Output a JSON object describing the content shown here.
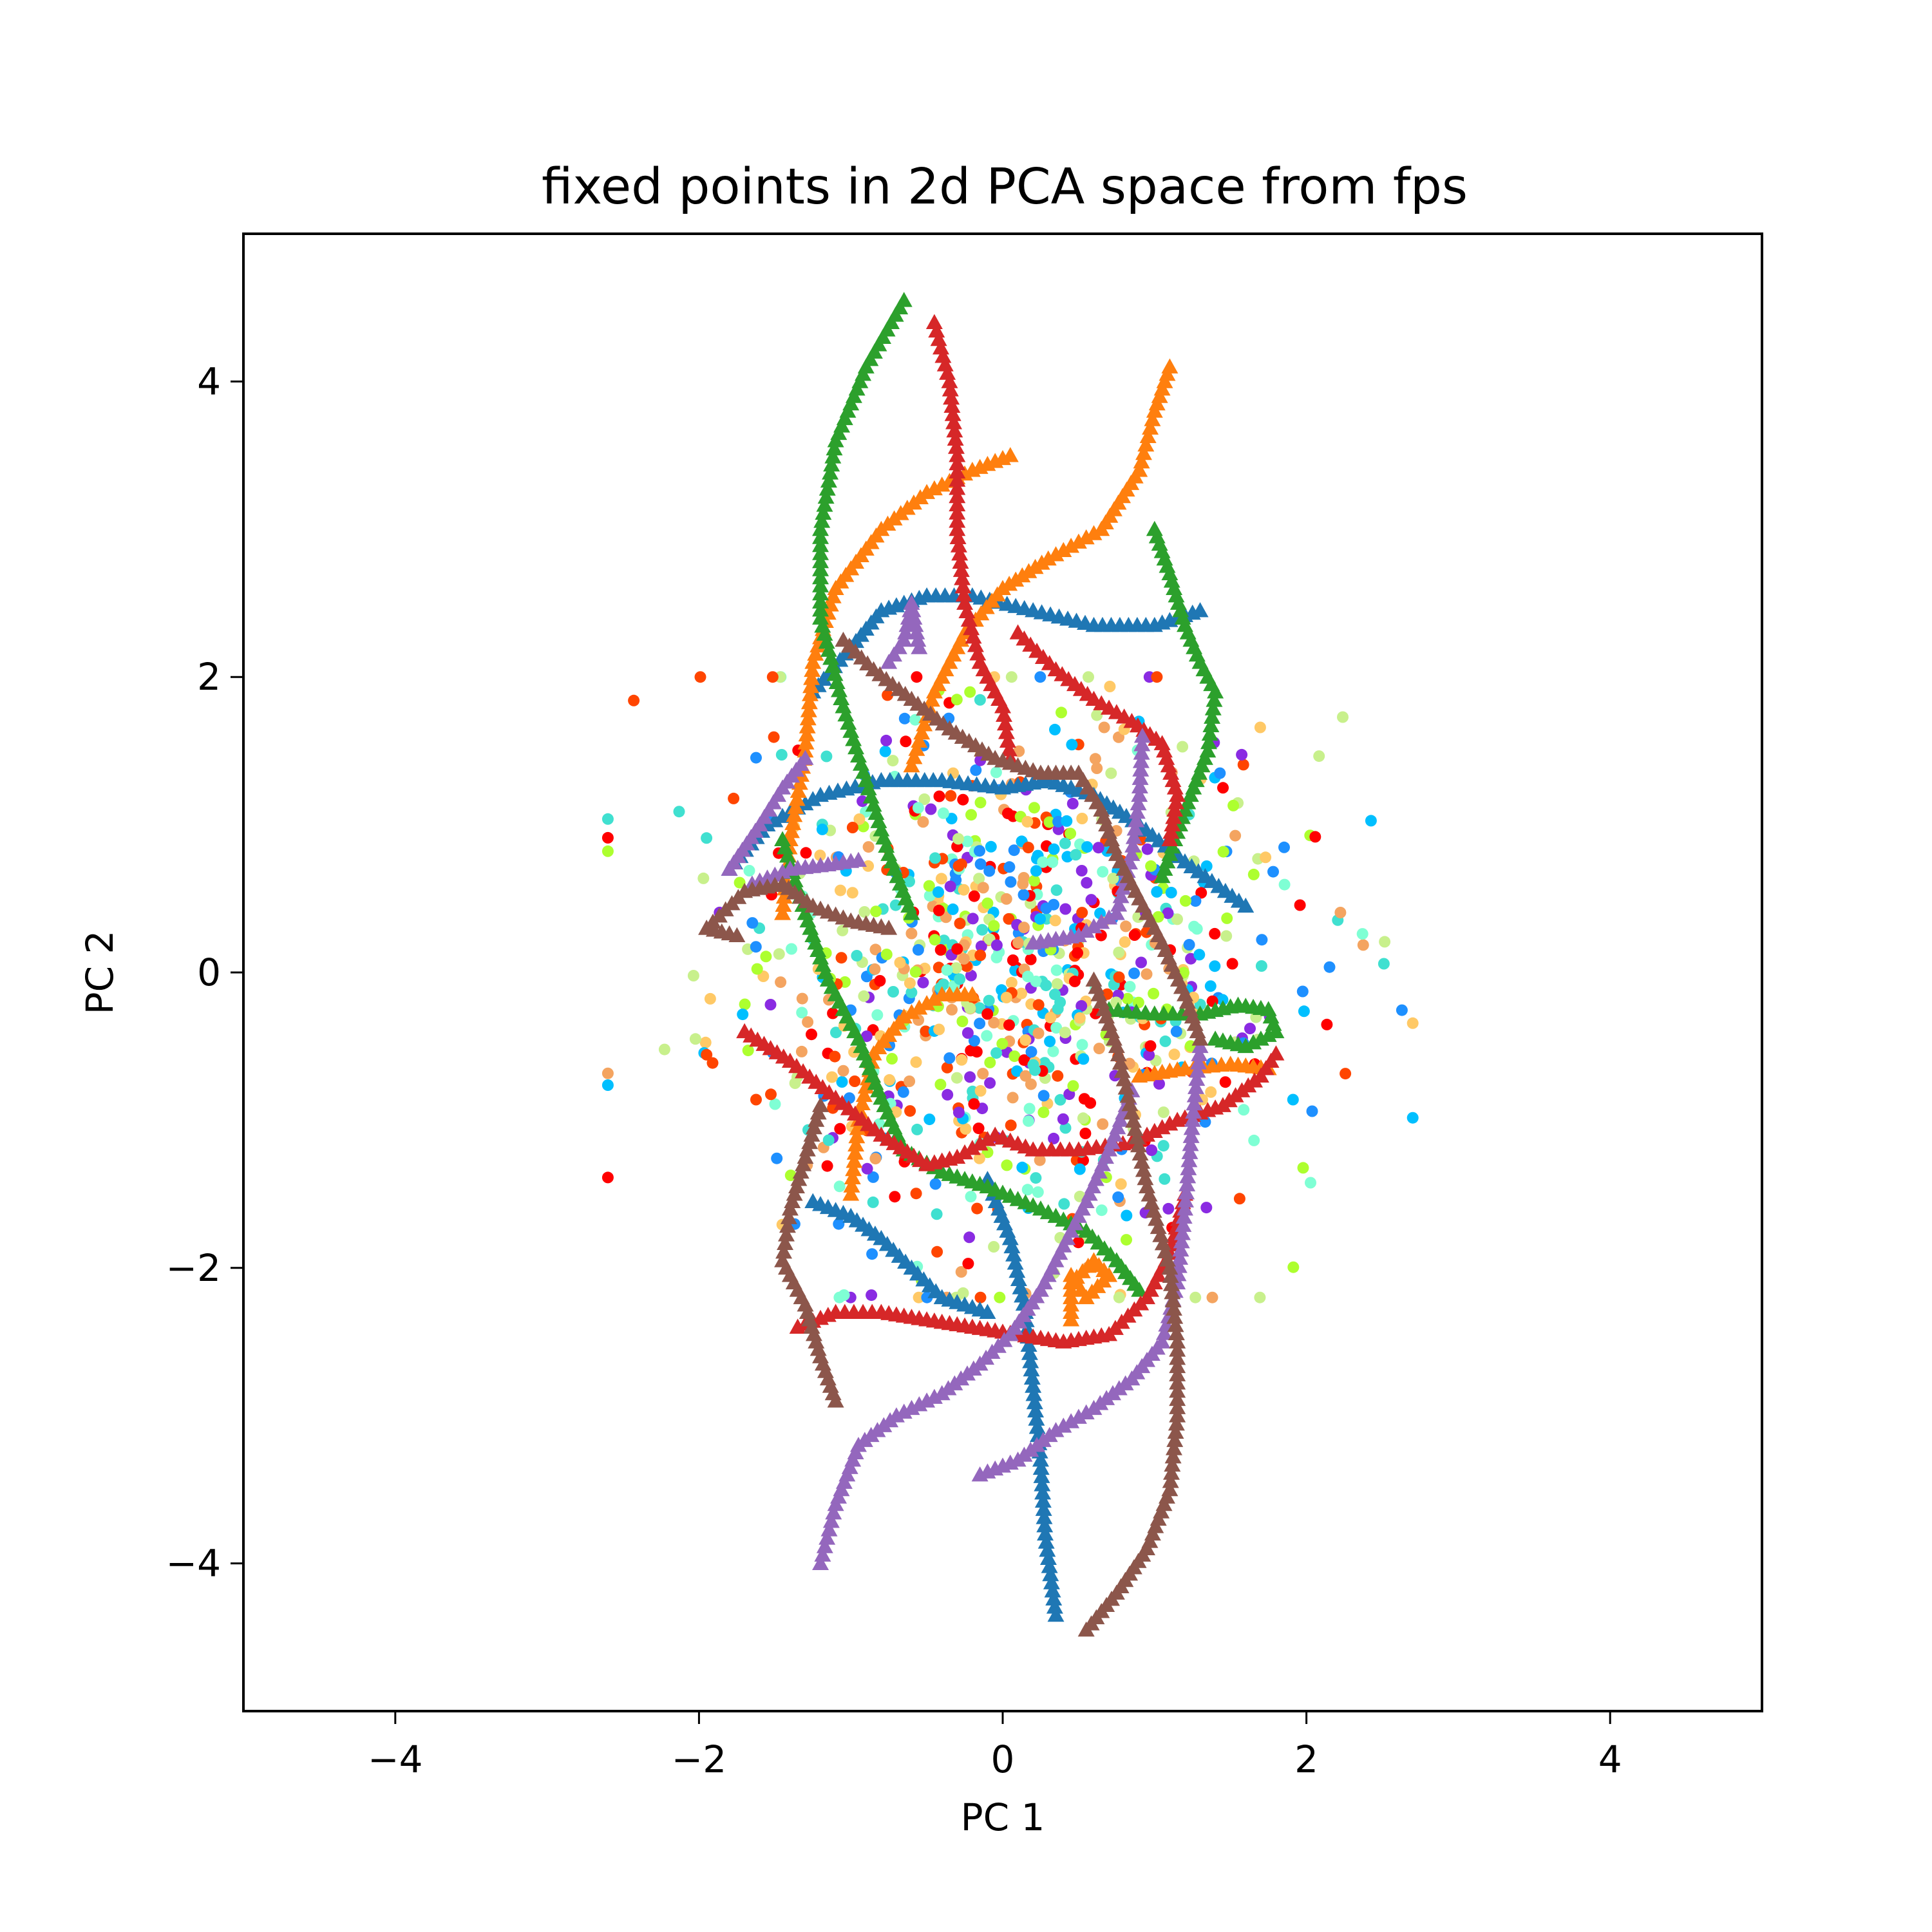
{
  "chart_data": {
    "type": "scatter",
    "title": "fixed points in 2d PCA space from fps",
    "xlabel": "PC 1",
    "ylabel": "PC 2",
    "xlim": [
      -5,
      5
    ],
    "ylim": [
      -5,
      5
    ],
    "xticks": [
      -4,
      -2,
      0,
      2,
      4
    ],
    "yticks": [
      -4,
      -2,
      0,
      2,
      4
    ],
    "xtick_labels": [
      "−4",
      "−2",
      "0",
      "2",
      "4"
    ],
    "ytick_labels": [
      "−4",
      "−2",
      "0",
      "2",
      "4"
    ],
    "grid": false,
    "legend": "none",
    "trajectories": [
      {
        "marker": "triangle",
        "color": "#1f77b4",
        "points": [
          [
            -1.25,
            1.9
          ],
          [
            -1.0,
            2.2
          ],
          [
            -0.8,
            2.45
          ],
          [
            -0.5,
            2.55
          ],
          [
            -0.2,
            2.55
          ],
          [
            0.2,
            2.45
          ],
          [
            0.6,
            2.35
          ],
          [
            1.0,
            2.35
          ],
          [
            1.3,
            2.45
          ]
        ]
      },
      {
        "marker": "triangle",
        "color": "#1f77b4",
        "points": [
          [
            -1.8,
            0.7
          ],
          [
            -1.55,
            1.0
          ],
          [
            -1.2,
            1.2
          ],
          [
            -0.8,
            1.3
          ],
          [
            -0.4,
            1.3
          ],
          [
            0.0,
            1.25
          ],
          [
            0.3,
            1.3
          ],
          [
            0.6,
            1.2
          ],
          [
            0.9,
            1.0
          ],
          [
            1.2,
            0.75
          ],
          [
            1.6,
            0.45
          ]
        ]
      },
      {
        "marker": "triangle",
        "color": "#1f77b4",
        "points": [
          [
            -1.25,
            -1.55
          ],
          [
            -1.0,
            -1.65
          ],
          [
            -0.8,
            -1.8
          ],
          [
            -0.6,
            -2.0
          ],
          [
            -0.4,
            -2.2
          ],
          [
            -0.1,
            -2.3
          ]
        ]
      },
      {
        "marker": "triangle",
        "color": "#1f77b4",
        "points": [
          [
            -0.1,
            -1.4
          ],
          [
            0.05,
            -1.8
          ],
          [
            0.15,
            -2.3
          ],
          [
            0.2,
            -2.8
          ],
          [
            0.25,
            -3.3
          ],
          [
            0.28,
            -3.8
          ],
          [
            0.35,
            -4.35
          ]
        ]
      },
      {
        "marker": "triangle",
        "color": "#ff7f0e",
        "points": [
          [
            -1.45,
            0.4
          ],
          [
            -1.4,
            0.9
          ],
          [
            -1.3,
            1.5
          ],
          [
            -1.25,
            2.1
          ],
          [
            -1.1,
            2.6
          ],
          [
            -0.8,
            3.0
          ],
          [
            -0.5,
            3.25
          ],
          [
            -0.2,
            3.4
          ],
          [
            0.05,
            3.5
          ]
        ]
      },
      {
        "marker": "triangle",
        "color": "#ff7f0e",
        "points": [
          [
            -0.6,
            1.4
          ],
          [
            -0.45,
            1.9
          ],
          [
            -0.25,
            2.3
          ],
          [
            0.0,
            2.6
          ],
          [
            0.3,
            2.8
          ],
          [
            0.65,
            3.0
          ],
          [
            0.9,
            3.4
          ],
          [
            1.0,
            3.8
          ],
          [
            1.1,
            4.1
          ]
        ]
      },
      {
        "marker": "triangle",
        "color": "#ff7f0e",
        "points": [
          [
            -1.0,
            -1.5
          ],
          [
            -0.95,
            -1.0
          ],
          [
            -0.85,
            -0.55
          ],
          [
            -0.65,
            -0.3
          ],
          [
            -0.4,
            -0.15
          ],
          [
            -0.2,
            -0.15
          ]
        ]
      },
      {
        "marker": "triangle",
        "color": "#ff7f0e",
        "points": [
          [
            0.9,
            -0.7
          ],
          [
            1.2,
            -0.65
          ],
          [
            1.5,
            -0.62
          ],
          [
            1.75,
            -0.65
          ]
        ]
      },
      {
        "marker": "triangle",
        "color": "#ff7f0e",
        "points": [
          [
            0.45,
            -2.35
          ],
          [
            0.45,
            -2.1
          ],
          [
            0.6,
            -1.95
          ],
          [
            0.7,
            -2.05
          ],
          [
            0.55,
            -2.2
          ],
          [
            0.45,
            -2.05
          ]
        ]
      },
      {
        "marker": "triangle",
        "color": "#2ca02c",
        "points": [
          [
            -0.65,
            4.55
          ],
          [
            -0.9,
            4.1
          ],
          [
            -1.1,
            3.6
          ],
          [
            -1.2,
            3.0
          ],
          [
            -1.2,
            2.4
          ],
          [
            -1.05,
            1.8
          ],
          [
            -0.9,
            1.3
          ],
          [
            -0.75,
            0.8
          ],
          [
            -0.6,
            0.4
          ]
        ]
      },
      {
        "marker": "triangle",
        "color": "#2ca02c",
        "points": [
          [
            -1.45,
            0.9
          ],
          [
            -1.3,
            0.4
          ],
          [
            -1.15,
            -0.05
          ],
          [
            -0.95,
            -0.45
          ],
          [
            -0.8,
            -0.85
          ],
          [
            -0.65,
            -1.2
          ],
          [
            -0.4,
            -1.35
          ],
          [
            -0.1,
            -1.45
          ],
          [
            0.25,
            -1.6
          ],
          [
            0.55,
            -1.75
          ],
          [
            0.75,
            -1.95
          ],
          [
            0.9,
            -2.15
          ]
        ]
      },
      {
        "marker": "triangle",
        "color": "#2ca02c",
        "points": [
          [
            1.0,
            3.0
          ],
          [
            1.1,
            2.7
          ],
          [
            1.2,
            2.35
          ],
          [
            1.3,
            2.1
          ],
          [
            1.4,
            1.9
          ],
          [
            1.35,
            1.5
          ],
          [
            1.2,
            1.1
          ],
          [
            1.05,
            0.65
          ]
        ]
      },
      {
        "marker": "triangle",
        "color": "#2ca02c",
        "points": [
          [
            0.7,
            -0.25
          ],
          [
            1.0,
            -0.28
          ],
          [
            1.3,
            -0.28
          ],
          [
            1.55,
            -0.22
          ],
          [
            1.75,
            -0.25
          ],
          [
            1.8,
            -0.4
          ],
          [
            1.6,
            -0.5
          ],
          [
            1.4,
            -0.45
          ]
        ]
      },
      {
        "marker": "triangle",
        "color": "#d62728",
        "points": [
          [
            -0.45,
            4.4
          ],
          [
            -0.35,
            4.0
          ],
          [
            -0.3,
            3.5
          ],
          [
            -0.3,
            3.0
          ],
          [
            -0.25,
            2.5
          ],
          [
            -0.15,
            2.1
          ],
          [
            0.0,
            1.8
          ],
          [
            0.05,
            1.45
          ]
        ]
      },
      {
        "marker": "triangle",
        "color": "#d62728",
        "points": [
          [
            0.1,
            2.3
          ],
          [
            0.35,
            2.05
          ],
          [
            0.6,
            1.85
          ],
          [
            0.85,
            1.7
          ],
          [
            1.05,
            1.55
          ],
          [
            1.15,
            1.2
          ],
          [
            1.1,
            0.9
          ]
        ]
      },
      {
        "marker": "triangle",
        "color": "#d62728",
        "points": [
          [
            -1.7,
            -0.4
          ],
          [
            -1.4,
            -0.6
          ],
          [
            -1.1,
            -0.85
          ],
          [
            -0.8,
            -1.1
          ],
          [
            -0.5,
            -1.3
          ],
          [
            -0.3,
            -1.25
          ],
          [
            -0.05,
            -1.1
          ],
          [
            0.2,
            -1.2
          ],
          [
            0.5,
            -1.2
          ],
          [
            0.85,
            -1.15
          ],
          [
            1.15,
            -1.0
          ],
          [
            1.45,
            -0.9
          ],
          [
            1.7,
            -0.7
          ],
          [
            1.8,
            -0.55
          ]
        ]
      },
      {
        "marker": "triangle",
        "color": "#d62728",
        "points": [
          [
            -1.35,
            -2.4
          ],
          [
            -1.1,
            -2.3
          ],
          [
            -0.8,
            -2.3
          ],
          [
            -0.5,
            -2.35
          ],
          [
            -0.2,
            -2.4
          ],
          [
            0.1,
            -2.45
          ],
          [
            0.4,
            -2.5
          ],
          [
            0.7,
            -2.45
          ],
          [
            0.95,
            -2.2
          ],
          [
            1.1,
            -1.9
          ],
          [
            1.2,
            -1.5
          ]
        ]
      },
      {
        "marker": "triangle",
        "color": "#9467bd",
        "points": [
          [
            -1.2,
            -4.0
          ],
          [
            -1.1,
            -3.6
          ],
          [
            -0.95,
            -3.2
          ],
          [
            -0.7,
            -3.0
          ],
          [
            -0.4,
            -2.85
          ],
          [
            -0.15,
            -2.65
          ],
          [
            0.05,
            -2.45
          ],
          [
            0.25,
            -2.15
          ],
          [
            0.4,
            -1.85
          ],
          [
            0.55,
            -1.55
          ],
          [
            0.7,
            -1.2
          ],
          [
            0.85,
            -0.8
          ]
        ]
      },
      {
        "marker": "triangle",
        "color": "#9467bd",
        "points": [
          [
            -0.15,
            -3.4
          ],
          [
            0.1,
            -3.3
          ],
          [
            0.35,
            -3.1
          ],
          [
            0.6,
            -2.95
          ],
          [
            0.85,
            -2.75
          ],
          [
            1.05,
            -2.5
          ],
          [
            1.15,
            -2.1
          ],
          [
            1.2,
            -1.6
          ],
          [
            1.25,
            -1.0
          ],
          [
            1.3,
            -0.5
          ]
        ]
      },
      {
        "marker": "triangle",
        "color": "#9467bd",
        "points": [
          [
            -1.8,
            0.7
          ],
          [
            -1.6,
            1.0
          ],
          [
            -1.45,
            1.25
          ],
          [
            -1.3,
            1.45
          ]
        ]
      },
      {
        "marker": "triangle",
        "color": "#9467bd",
        "points": [
          [
            -1.65,
            0.6
          ],
          [
            -1.4,
            0.7
          ],
          [
            -1.15,
            0.73
          ],
          [
            -0.95,
            0.76
          ]
        ]
      },
      {
        "marker": "triangle",
        "color": "#9467bd",
        "points": [
          [
            -0.75,
            2.1
          ],
          [
            -0.65,
            2.25
          ],
          [
            -0.6,
            2.5
          ],
          [
            -0.55,
            2.2
          ]
        ]
      },
      {
        "marker": "triangle",
        "color": "#9467bd",
        "points": [
          [
            0.2,
            0.2
          ],
          [
            0.5,
            0.25
          ],
          [
            0.75,
            0.4
          ],
          [
            0.85,
            0.8
          ],
          [
            0.9,
            1.2
          ],
          [
            0.92,
            1.6
          ]
        ]
      },
      {
        "marker": "triangle",
        "color": "#8c564b",
        "points": [
          [
            -1.1,
            -2.9
          ],
          [
            -1.2,
            -2.6
          ],
          [
            -1.3,
            -2.25
          ],
          [
            -1.45,
            -1.95
          ],
          [
            -1.4,
            -1.6
          ],
          [
            -1.3,
            -1.25
          ],
          [
            -1.2,
            -0.9
          ]
        ]
      },
      {
        "marker": "triangle",
        "color": "#8c564b",
        "points": [
          [
            -1.95,
            0.3
          ],
          [
            -1.7,
            0.55
          ],
          [
            -1.45,
            0.6
          ],
          [
            -1.25,
            0.45
          ],
          [
            -1.0,
            0.35
          ],
          [
            -0.75,
            0.3
          ]
        ]
      },
      {
        "marker": "triangle",
        "color": "#8c564b",
        "points": [
          [
            -1.95,
            0.3
          ],
          [
            -1.75,
            0.25
          ]
        ]
      },
      {
        "marker": "triangle",
        "color": "#8c564b",
        "points": [
          [
            -1.05,
            2.25
          ],
          [
            -0.85,
            2.05
          ],
          [
            -0.6,
            1.85
          ],
          [
            -0.35,
            1.65
          ],
          [
            -0.05,
            1.45
          ],
          [
            0.25,
            1.35
          ],
          [
            0.5,
            1.35
          ],
          [
            0.65,
            1.1
          ],
          [
            0.75,
            0.8
          ],
          [
            0.9,
            0.5
          ],
          [
            1.05,
            0.2
          ],
          [
            1.2,
            -0.15
          ],
          [
            1.3,
            -0.45
          ]
        ]
      },
      {
        "marker": "triangle",
        "color": "#8c564b",
        "points": [
          [
            0.55,
            -4.45
          ],
          [
            0.75,
            -4.2
          ],
          [
            0.95,
            -3.9
          ],
          [
            1.1,
            -3.5
          ],
          [
            1.15,
            -3.0
          ],
          [
            1.15,
            -2.5
          ],
          [
            1.1,
            -2.0
          ],
          [
            0.95,
            -1.45
          ],
          [
            0.85,
            -0.95
          ],
          [
            0.75,
            -0.5
          ],
          [
            0.6,
            -0.05
          ]
        ]
      }
    ],
    "scatter_colors": [
      "#ff0000",
      "#ff4500",
      "#f4a460",
      "#ffc966",
      "#c8f08c",
      "#7fffd4",
      "#40e0d0",
      "#1e90ff",
      "#00bfff",
      "#8a2be2",
      "#adff2f"
    ]
  }
}
